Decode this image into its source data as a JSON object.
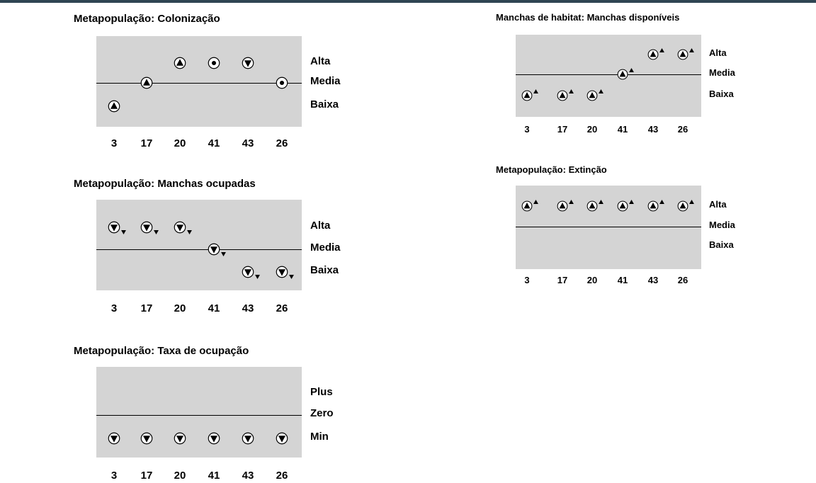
{
  "colors": {
    "topbar": "#2f4553",
    "panel_bg": "#d4d4d4",
    "ink": "#000000"
  },
  "chart_data": [
    {
      "type": "scatter",
      "title": "Metapopulação: Colonização",
      "categories": [
        "3",
        "17",
        "20",
        "41",
        "43",
        "26"
      ],
      "y_levels": [
        "Alta",
        "Media",
        "Baixa"
      ],
      "values": [
        "Baixa",
        "Media",
        "Alta",
        "Alta",
        "Alta",
        "Media"
      ],
      "symbols": [
        "up-triangle",
        "up-triangle",
        "up-triangle",
        "dot",
        "down-triangle",
        "dot"
      ],
      "trends": [
        "",
        "",
        "",
        "",
        "",
        ""
      ]
    },
    {
      "type": "scatter",
      "title": "Metapopulação: Manchas ocupadas",
      "categories": [
        "3",
        "17",
        "20",
        "41",
        "43",
        "26"
      ],
      "y_levels": [
        "Alta",
        "Media",
        "Baixa"
      ],
      "values": [
        "Alta",
        "Alta",
        "Alta",
        "Media",
        "Baixa",
        "Baixa"
      ],
      "symbols": [
        "down-triangle",
        "down-triangle",
        "down-triangle",
        "down-triangle",
        "down-triangle",
        "down-triangle"
      ],
      "trends": [
        "down",
        "down",
        "down",
        "down",
        "down",
        "down"
      ]
    },
    {
      "type": "scatter",
      "title": "Metapopulação: Taxa de ocupação",
      "categories": [
        "3",
        "17",
        "20",
        "41",
        "43",
        "26"
      ],
      "y_levels": [
        "Plus",
        "Zero",
        "Min"
      ],
      "values": [
        "Min",
        "Min",
        "Min",
        "Min",
        "Min",
        "Min"
      ],
      "symbols": [
        "down-triangle",
        "down-triangle",
        "down-triangle",
        "down-triangle",
        "down-triangle",
        "down-triangle"
      ],
      "trends": [
        "",
        "",
        "",
        "",
        "",
        ""
      ]
    },
    {
      "type": "scatter",
      "title": "Manchas de habitat: Manchas disponíveis",
      "categories": [
        "3",
        "17",
        "20",
        "41",
        "43",
        "26"
      ],
      "y_levels": [
        "Alta",
        "Media",
        "Baixa"
      ],
      "values": [
        "Baixa",
        "Baixa",
        "Baixa",
        "Media",
        "Alta",
        "Alta"
      ],
      "symbols": [
        "up-triangle",
        "up-triangle",
        "up-triangle",
        "up-triangle",
        "up-triangle",
        "up-triangle"
      ],
      "trends": [
        "up",
        "up",
        "up",
        "up",
        "up",
        "up"
      ]
    },
    {
      "type": "scatter",
      "title": "Metapopulação: Extinção",
      "categories": [
        "3",
        "17",
        "20",
        "41",
        "43",
        "26"
      ],
      "y_levels": [
        "Alta",
        "Media",
        "Baixa"
      ],
      "values": [
        "Alta",
        "Alta",
        "Alta",
        "Alta",
        "Alta",
        "Alta"
      ],
      "symbols": [
        "up-triangle",
        "up-triangle",
        "up-triangle",
        "up-triangle",
        "up-triangle",
        "up-triangle"
      ],
      "trends": [
        "up",
        "up",
        "up",
        "up",
        "up",
        "up"
      ]
    }
  ]
}
